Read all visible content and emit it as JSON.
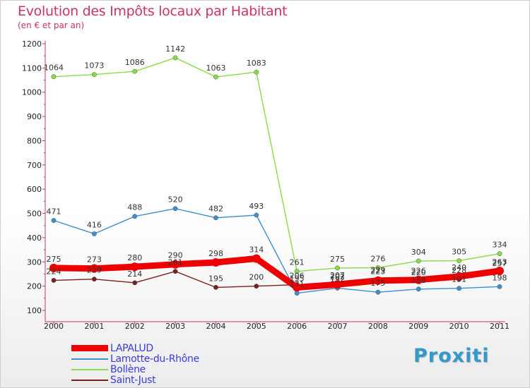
{
  "chart_data": {
    "type": "line",
    "title": "Evolution des Impôts locaux par Habitant",
    "subtitle": "(en € et par an)",
    "xlabel": "",
    "ylabel": "",
    "categories": [
      "2000",
      "2001",
      "2002",
      "2003",
      "2004",
      "2005",
      "2006",
      "2007",
      "2008",
      "2009",
      "2010",
      "2011"
    ],
    "ylim": [
      100,
      1200
    ],
    "yticks": [
      100,
      200,
      300,
      400,
      500,
      600,
      700,
      800,
      900,
      1000,
      1100,
      1200
    ],
    "grid": false,
    "legend_position": "bottom-left",
    "series": [
      {
        "name": "LAPALUD",
        "color": "#ee0000",
        "emphasis": true,
        "values": [
          275,
          273,
          280,
          290,
          298,
          314,
          195,
          207,
          223,
          226,
          240,
          263
        ]
      },
      {
        "name": "Lamotte-du-Rhône",
        "color": "#3d8fcf",
        "emphasis": false,
        "values": [
          471,
          416,
          488,
          520,
          482,
          493,
          171,
          192,
          175,
          188,
          191,
          198
        ]
      },
      {
        "name": "Bollène",
        "color": "#88dd44",
        "emphasis": false,
        "values": [
          1064,
          1073,
          1086,
          1142,
          1063,
          1083,
          261,
          275,
          276,
          304,
          305,
          334
        ]
      },
      {
        "name": "Saint-Just",
        "color": "#7a1f1f",
        "emphasis": false,
        "values": [
          224,
          229,
          214,
          261,
          195,
          200,
          206,
          202,
          229,
          220,
          228,
          257
        ]
      }
    ]
  },
  "brand": "Proxiti"
}
